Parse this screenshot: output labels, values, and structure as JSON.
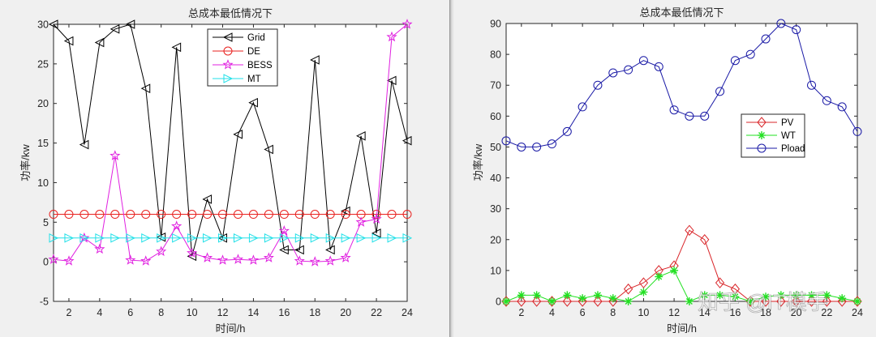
{
  "left_panel": {
    "title": "总成本最低情况下",
    "xlabel": "时间/h",
    "ylabel": "功率/kw",
    "legend": [
      "Grid",
      "DE",
      "BESS",
      "MT"
    ]
  },
  "right_panel": {
    "title": "总成本最低情况下",
    "xlabel": "时间/h",
    "ylabel": "功率/kw",
    "legend": [
      "PV",
      "WT",
      "Pload"
    ],
    "watermark": "知乎 @IT模手"
  },
  "chart_data": [
    {
      "type": "line",
      "title": "总成本最低情况下",
      "xlabel": "时间/h",
      "ylabel": "功率/kw",
      "x": [
        1,
        2,
        3,
        4,
        5,
        6,
        7,
        8,
        9,
        10,
        11,
        12,
        13,
        14,
        15,
        16,
        17,
        18,
        19,
        20,
        21,
        22,
        23,
        24
      ],
      "xlim": [
        1,
        24
      ],
      "ylim": [
        -5,
        30
      ],
      "xticks": [
        2,
        4,
        6,
        8,
        10,
        12,
        14,
        16,
        18,
        20,
        22,
        24
      ],
      "yticks": [
        -5,
        0,
        5,
        10,
        15,
        20,
        25,
        30
      ],
      "grid": false,
      "legend_position": "upper center",
      "series": [
        {
          "name": "Grid",
          "color": "#000000",
          "marker": "triangle-left",
          "values": [
            30,
            27.9,
            14.8,
            27.7,
            29.4,
            30,
            21.9,
            3.1,
            27.1,
            0.7,
            7.9,
            3.0,
            16.1,
            20.1,
            14.2,
            1.5,
            1.5,
            25.5,
            1.5,
            6.4,
            15.9,
            3.6,
            22.9,
            15.3
          ]
        },
        {
          "name": "DE",
          "color": "#e8211f",
          "marker": "circle",
          "values": [
            6,
            6,
            6,
            6,
            6,
            6,
            6,
            6,
            6,
            6,
            6,
            6,
            6,
            6,
            6,
            6,
            6,
            6,
            6,
            6,
            6,
            6,
            6,
            6
          ]
        },
        {
          "name": "BESS",
          "color": "#e020e0",
          "marker": "star",
          "values": [
            0.3,
            0.1,
            3.0,
            1.6,
            13.4,
            0.2,
            0.1,
            1.3,
            4.5,
            1.1,
            0.5,
            0.2,
            0.3,
            0.2,
            0.5,
            3.9,
            0.1,
            0.0,
            0.1,
            0.5,
            5.0,
            5.4,
            28.4,
            30
          ]
        },
        {
          "name": "MT",
          "color": "#22e0e8",
          "marker": "triangle-right",
          "values": [
            3,
            3,
            3,
            3,
            3,
            3,
            3,
            3,
            3,
            3,
            3,
            3,
            3,
            3,
            3,
            3,
            3,
            3,
            3,
            3,
            3,
            3,
            3,
            3
          ]
        }
      ]
    },
    {
      "type": "line",
      "title": "总成本最低情况下",
      "xlabel": "时间/h",
      "ylabel": "功率/kw",
      "x": [
        1,
        2,
        3,
        4,
        5,
        6,
        7,
        8,
        9,
        10,
        11,
        12,
        13,
        14,
        15,
        16,
        17,
        18,
        19,
        20,
        21,
        22,
        23,
        24
      ],
      "xlim": [
        1,
        24
      ],
      "ylim": [
        0,
        90
      ],
      "xticks": [
        2,
        4,
        6,
        8,
        10,
        12,
        14,
        16,
        18,
        20,
        22,
        24
      ],
      "yticks": [
        0,
        10,
        20,
        30,
        40,
        50,
        60,
        70,
        80,
        90
      ],
      "grid": false,
      "legend_position": "center right",
      "series": [
        {
          "name": "PV",
          "color": "#d9262a",
          "marker": "diamond",
          "values": [
            0,
            0,
            0,
            0,
            0,
            0,
            0,
            0,
            4,
            6,
            10,
            11.5,
            23,
            20,
            6,
            4,
            0,
            0,
            0,
            0,
            0,
            0,
            0,
            0
          ]
        },
        {
          "name": "WT",
          "color": "#22e022",
          "marker": "asterisk",
          "values": [
            0,
            2,
            2,
            0,
            2,
            1,
            2,
            1,
            0,
            3,
            8,
            10,
            0,
            2,
            2,
            1.5,
            0,
            1.5,
            2,
            2,
            2,
            2,
            1,
            0
          ]
        },
        {
          "name": "Pload",
          "color": "#1a1aa6",
          "marker": "circle",
          "values": [
            52,
            50,
            50,
            51,
            55,
            63,
            70,
            74,
            75,
            78,
            76,
            62,
            60,
            60,
            68,
            78,
            80,
            85,
            90,
            88,
            70,
            65,
            63,
            55
          ]
        }
      ]
    }
  ]
}
